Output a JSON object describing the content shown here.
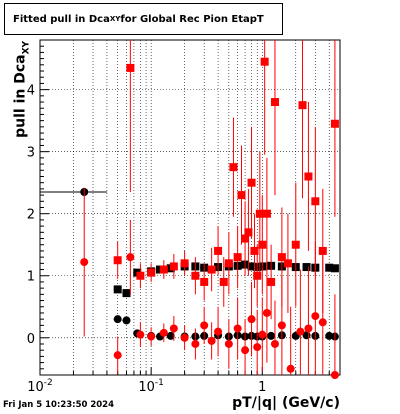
{
  "title": {
    "prefix": "Fitted pull in Dca",
    "subscript": "XY",
    "suffix": " for Global Rec Pion EtapT"
  },
  "footer": "Fri Jan  5 10:23:50 2024",
  "chart_data": {
    "type": "scatter",
    "title": "Fitted pull in Dca_XY for Global Rec Pion EtapT",
    "xlabel": "pT/|q| (GeV/c)",
    "ylabel": "pull in Dca_XY",
    "xscale": "log",
    "xlim": [
      0.01,
      5.0
    ],
    "ylim": [
      -0.6,
      4.8
    ],
    "grid": true,
    "x_tick_labels": [
      "10^-2",
      "10^-1",
      "1"
    ],
    "y_tick_labels": [
      "0",
      "1",
      "2",
      "3",
      "4"
    ],
    "series": [
      {
        "color": "#000000",
        "marker": "square",
        "x": [
          0.05,
          0.06,
          0.075,
          0.1,
          0.12,
          0.15,
          0.2,
          0.25,
          0.3,
          0.4,
          0.5,
          0.6,
          0.7,
          0.8,
          0.9,
          1.0,
          1.2,
          1.5,
          2.0,
          2.5,
          3.0,
          4.0,
          4.5
        ],
        "y": [
          0.78,
          0.72,
          1.05,
          1.07,
          1.1,
          1.12,
          1.15,
          1.15,
          1.13,
          1.14,
          1.15,
          1.16,
          1.18,
          1.15,
          1.14,
          1.15,
          1.16,
          1.15,
          1.14,
          1.14,
          1.13,
          1.13,
          1.12
        ],
        "xerr": [
          0.004,
          0.005,
          0.006,
          0.008,
          0.01,
          0.012,
          0.015,
          0.02,
          0.025,
          0.03,
          0.04,
          0.05,
          0.05,
          0.05,
          0.05,
          0.06,
          0.08,
          0.1,
          0.12,
          0.15,
          0.2,
          0.25,
          0.3
        ]
      },
      {
        "color": "#000000",
        "marker": "circle",
        "x": [
          0.025,
          0.05,
          0.06,
          0.075,
          0.1,
          0.12,
          0.15,
          0.2,
          0.25,
          0.3,
          0.4,
          0.5,
          0.6,
          0.7,
          0.8,
          0.9,
          1.0,
          1.2,
          1.5,
          2.0,
          2.5,
          3.0,
          4.0,
          4.5
        ],
        "y": [
          2.35,
          0.3,
          0.28,
          0.07,
          0.03,
          0.02,
          0.03,
          0.02,
          0.02,
          0.03,
          0.04,
          0.02,
          0.04,
          0.02,
          0.03,
          0.02,
          0.02,
          0.03,
          0.04,
          0.03,
          0.04,
          0.03,
          0.03,
          0.02
        ],
        "xerr": [
          0.015,
          0.004,
          0.005,
          0.006,
          0.008,
          0.01,
          0.012,
          0.015,
          0.02,
          0.025,
          0.03,
          0.04,
          0.05,
          0.05,
          0.05,
          0.05,
          0.06,
          0.08,
          0.1,
          0.12,
          0.15,
          0.2,
          0.25,
          0.3
        ]
      },
      {
        "color": "#ff0000",
        "marker": "square",
        "x": [
          0.05,
          0.065,
          0.08,
          0.1,
          0.13,
          0.16,
          0.2,
          0.25,
          0.3,
          0.35,
          0.4,
          0.45,
          0.5,
          0.55,
          0.6,
          0.65,
          0.7,
          0.75,
          0.8,
          0.85,
          0.9,
          0.95,
          1.0,
          1.05,
          1.1,
          1.2,
          1.3,
          1.5,
          1.7,
          2.0,
          2.3,
          2.6,
          3.0,
          3.5,
          4.5
        ],
        "y": [
          1.25,
          4.35,
          1.0,
          1.05,
          1.1,
          1.15,
          1.2,
          1.0,
          0.9,
          1.1,
          1.4,
          0.9,
          1.2,
          2.75,
          1.3,
          2.3,
          1.6,
          1.7,
          2.5,
          1.4,
          1.0,
          2.0,
          1.5,
          4.45,
          2.0,
          0.9,
          3.8,
          1.3,
          1.2,
          1.5,
          3.75,
          2.6,
          2.2,
          1.4,
          3.45
        ],
        "yerr": [
          0.3,
          2.0,
          0.2,
          0.15,
          0.15,
          0.2,
          0.2,
          0.3,
          0.3,
          0.35,
          0.4,
          0.4,
          0.5,
          0.8,
          0.5,
          0.8,
          0.6,
          0.7,
          0.9,
          0.6,
          0.5,
          1.0,
          0.8,
          1.5,
          0.9,
          0.6,
          1.5,
          0.8,
          0.8,
          1.0,
          1.5,
          1.2,
          1.2,
          1.0,
          1.5
        ]
      },
      {
        "color": "#ff0000",
        "marker": "circle",
        "x": [
          0.025,
          0.05,
          0.065,
          0.08,
          0.1,
          0.13,
          0.16,
          0.2,
          0.25,
          0.3,
          0.35,
          0.4,
          0.5,
          0.6,
          0.7,
          0.8,
          0.9,
          1.0,
          1.1,
          1.3,
          1.5,
          1.8,
          2.2,
          2.6,
          3.0,
          3.5,
          4.5
        ],
        "y": [
          1.22,
          -0.28,
          1.3,
          0.05,
          0.02,
          0.08,
          0.15,
          0.0,
          -0.1,
          0.2,
          -0.05,
          0.1,
          -0.1,
          0.15,
          -0.2,
          0.3,
          -0.15,
          0.05,
          0.4,
          -0.1,
          0.2,
          -0.5,
          0.1,
          0.15,
          0.35,
          0.25,
          -0.6
        ],
        "yerr": [
          1.2,
          0.3,
          0.6,
          0.2,
          0.15,
          0.15,
          0.2,
          0.2,
          0.25,
          0.3,
          0.3,
          0.4,
          0.4,
          0.5,
          0.5,
          0.6,
          0.6,
          0.6,
          0.8,
          0.7,
          0.8,
          1.0,
          1.0,
          1.0,
          1.2,
          1.2,
          1.3
        ]
      }
    ]
  }
}
